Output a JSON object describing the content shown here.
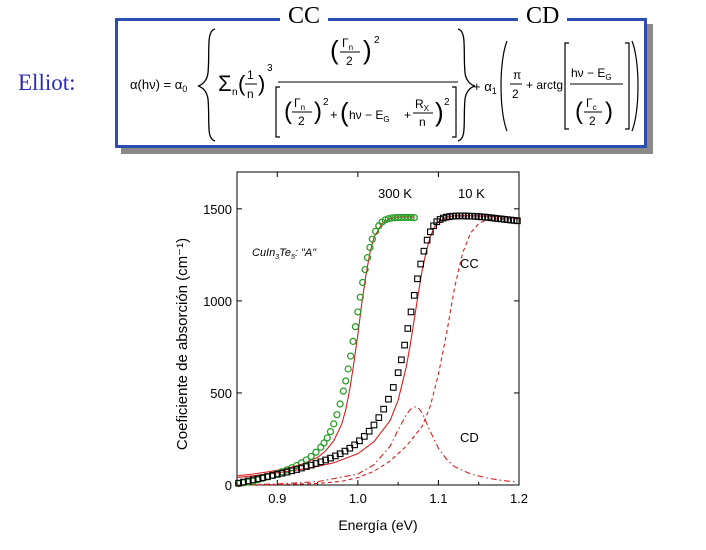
{
  "label": "Elliot:",
  "headers": {
    "cc": "CC",
    "cd": "CD"
  },
  "formula": {
    "lhs": "α(hν) = α",
    "sub0": "0",
    "sum": "Σ",
    "sum_sub": "n",
    "frac_one": "1",
    "frac_n": "n",
    "cube": "3",
    "gamma": "Γ",
    "gamma_sub": "n",
    "two": "2",
    "sq": "2",
    "hv_minus": "hν − E",
    "eg_sub": "G",
    "plus": "+",
    "r": "R",
    "r_sub": "X",
    "plus_alpha": "+ α",
    "sub1": "1",
    "pi": "π",
    "arctg": "+ arctg",
    "gamma_c_sub": "c"
  },
  "chart_data": {
    "type": "scatter",
    "xlabel": "Energía  (eV)",
    "ylabel": "Coeficiente de absorción  (cm⁻¹)",
    "xlim": [
      0.85,
      1.2
    ],
    "ylim": [
      0,
      1700
    ],
    "xticks": [
      0.9,
      1.0,
      1.1,
      1.2
    ],
    "xtick_labels": [
      "0.9",
      "1.0",
      "1.1",
      "1.2"
    ],
    "yticks": [
      0,
      500,
      1000,
      1500
    ],
    "ytick_labels": [
      "0",
      "500",
      "1000",
      "1500"
    ],
    "annotations": {
      "t300": "300 K",
      "t10": "10 K",
      "cc": "CC",
      "cd": "CD",
      "compound": "CuIn",
      "compound_sub1": "3",
      "compound_mid": "Te",
      "compound_sub2": "5",
      "compound_tail": ": \"A\""
    },
    "series": [
      {
        "name": "300 K data",
        "marker": "circle",
        "color": "#1e9a1e",
        "x": [
          0.852,
          0.858,
          0.864,
          0.87,
          0.876,
          0.882,
          0.888,
          0.894,
          0.9,
          0.906,
          0.912,
          0.918,
          0.924,
          0.93,
          0.936,
          0.942,
          0.948,
          0.954,
          0.958,
          0.962,
          0.966,
          0.97,
          0.974,
          0.978,
          0.982,
          0.985,
          0.988,
          0.991,
          0.994,
          0.997,
          1.0,
          1.003,
          1.006,
          1.009,
          1.012,
          1.015,
          1.018,
          1.022,
          1.026,
          1.03,
          1.034,
          1.038,
          1.042,
          1.046,
          1.05,
          1.054,
          1.058,
          1.062,
          1.066,
          1.07
        ],
        "y": [
          8,
          12,
          16,
          21,
          28,
          36,
          44,
          53,
          62,
          72,
          82,
          94,
          106,
          120,
          136,
          155,
          178,
          205,
          228,
          256,
          290,
          332,
          382,
          440,
          510,
          565,
          630,
          700,
          780,
          860,
          940,
          1020,
          1100,
          1170,
          1235,
          1290,
          1335,
          1378,
          1408,
          1428,
          1440,
          1446,
          1450,
          1452,
          1453,
          1453,
          1453,
          1453,
          1453,
          1452
        ]
      },
      {
        "name": "10 K data",
        "marker": "square",
        "color": "#000000",
        "x": [
          0.852,
          0.858,
          0.864,
          0.87,
          0.876,
          0.882,
          0.888,
          0.894,
          0.9,
          0.906,
          0.912,
          0.918,
          0.924,
          0.93,
          0.936,
          0.942,
          0.948,
          0.954,
          0.96,
          0.966,
          0.972,
          0.978,
          0.984,
          0.99,
          0.996,
          1.002,
          1.008,
          1.014,
          1.02,
          1.026,
          1.032,
          1.038,
          1.044,
          1.05,
          1.054,
          1.058,
          1.062,
          1.066,
          1.07,
          1.074,
          1.078,
          1.082,
          1.086,
          1.09,
          1.094,
          1.098,
          1.102,
          1.106,
          1.11,
          1.114,
          1.118,
          1.122,
          1.126,
          1.13,
          1.134,
          1.138,
          1.142,
          1.146,
          1.15,
          1.154,
          1.158,
          1.162,
          1.166,
          1.17,
          1.174,
          1.178,
          1.182,
          1.186,
          1.19,
          1.194,
          1.198
        ],
        "y": [
          10,
          16,
          22,
          28,
          34,
          40,
          46,
          52,
          58,
          64,
          70,
          77,
          84,
          92,
          100,
          108,
          117,
          126,
          136,
          146,
          158,
          170,
          184,
          200,
          218,
          240,
          264,
          292,
          326,
          366,
          412,
          466,
          530,
          610,
          680,
          760,
          850,
          940,
          1030,
          1120,
          1200,
          1270,
          1330,
          1375,
          1408,
          1430,
          1442,
          1450,
          1455,
          1458,
          1460,
          1461,
          1462,
          1462,
          1461,
          1460,
          1460,
          1459,
          1458,
          1456,
          1455,
          1453,
          1451,
          1449,
          1447,
          1445,
          1443,
          1441,
          1439,
          1437,
          1435
        ]
      },
      {
        "name": "300 K fit",
        "style": "solid",
        "color": "#d62020",
        "x": [
          0.85,
          0.87,
          0.89,
          0.91,
          0.93,
          0.95,
          0.96,
          0.97,
          0.98,
          0.985,
          0.99,
          0.995,
          1.0,
          1.005,
          1.01,
          1.015,
          1.02,
          1.03,
          1.04,
          1.05,
          1.06,
          1.07
        ],
        "y": [
          50,
          60,
          72,
          88,
          112,
          150,
          185,
          240,
          330,
          410,
          520,
          660,
          820,
          990,
          1140,
          1260,
          1345,
          1420,
          1448,
          1455,
          1455,
          1455
        ]
      },
      {
        "name": "10 K fit",
        "style": "solid",
        "color": "#d62020",
        "x": [
          0.85,
          0.88,
          0.91,
          0.94,
          0.97,
          1.0,
          1.02,
          1.04,
          1.05,
          1.06,
          1.065,
          1.07,
          1.075,
          1.08,
          1.085,
          1.09,
          1.095,
          1.1,
          1.11,
          1.12,
          1.14,
          1.16,
          1.18,
          1.2
        ],
        "y": [
          40,
          55,
          72,
          92,
          120,
          170,
          235,
          350,
          460,
          640,
          760,
          900,
          1040,
          1170,
          1270,
          1350,
          1400,
          1430,
          1455,
          1462,
          1462,
          1460,
          1456,
          1450
        ]
      },
      {
        "name": "CC",
        "style": "dashed",
        "color": "#d62020",
        "x": [
          0.85,
          0.9,
          0.95,
          0.98,
          1.0,
          1.02,
          1.04,
          1.06,
          1.08,
          1.09,
          1.1,
          1.11,
          1.12,
          1.13,
          1.14,
          1.15,
          1.16,
          1.17,
          1.18,
          1.2
        ],
        "y": [
          0,
          2,
          8,
          20,
          40,
          75,
          130,
          210,
          320,
          430,
          600,
          820,
          1070,
          1260,
          1370,
          1420,
          1440,
          1445,
          1446,
          1446
        ]
      },
      {
        "name": "CD",
        "style": "dashdot",
        "color": "#d62020",
        "x": [
          0.85,
          0.9,
          0.95,
          1.0,
          1.02,
          1.04,
          1.05,
          1.06,
          1.065,
          1.07,
          1.075,
          1.08,
          1.09,
          1.1,
          1.11,
          1.12,
          1.14,
          1.16,
          1.18,
          1.195
        ],
        "y": [
          0,
          6,
          18,
          60,
          110,
          210,
          300,
          380,
          410,
          425,
          420,
          390,
          290,
          200,
          140,
          100,
          60,
          38,
          24,
          18
        ]
      }
    ]
  }
}
